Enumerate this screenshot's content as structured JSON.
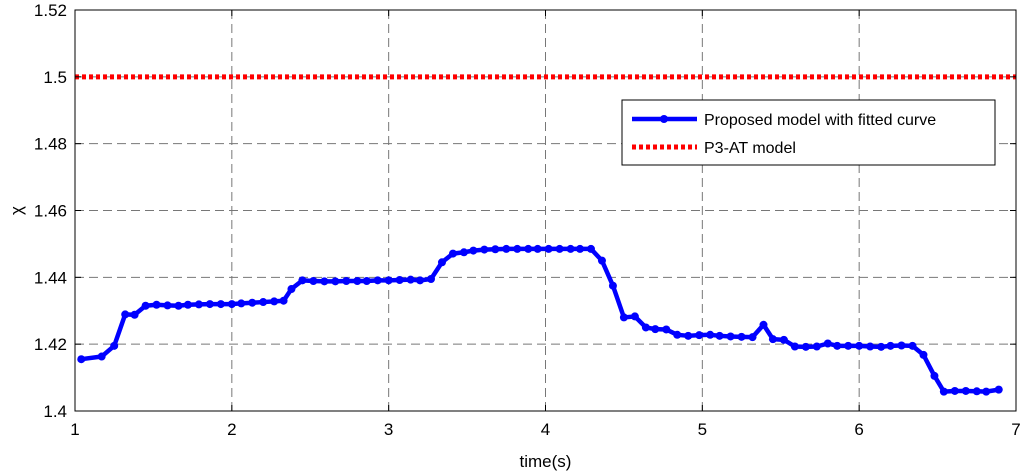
{
  "chart_data": {
    "type": "line",
    "xlabel": "time(s)",
    "ylabel": "χ",
    "xlim": [
      1,
      7
    ],
    "ylim": [
      1.4,
      1.52
    ],
    "xticks": [
      1,
      2,
      3,
      4,
      5,
      6,
      7
    ],
    "yticks": [
      1.4,
      1.42,
      1.44,
      1.46,
      1.48,
      1.5,
      1.52
    ],
    "xtick_labels": [
      "1",
      "2",
      "3",
      "4",
      "5",
      "6",
      "7"
    ],
    "ytick_labels": [
      "1.4",
      "1.42",
      "1.44",
      "1.46",
      "1.48",
      "1.5",
      "1.52"
    ],
    "grid": true,
    "legend_position": "top-right",
    "series": [
      {
        "name": "Proposed model with fitted curve",
        "color": "#0000ff",
        "style": "solid-with-markers",
        "x": [
          1.04,
          1.17,
          1.25,
          1.32,
          1.38,
          1.45,
          1.52,
          1.59,
          1.66,
          1.72,
          1.79,
          1.86,
          1.93,
          2.0,
          2.06,
          2.13,
          2.2,
          2.27,
          2.33,
          2.38,
          2.45,
          2.52,
          2.59,
          2.66,
          2.73,
          2.8,
          2.86,
          2.93,
          3.0,
          3.07,
          3.14,
          3.2,
          3.27,
          3.34,
          3.41,
          3.48,
          3.54,
          3.61,
          3.68,
          3.75,
          3.82,
          3.89,
          3.95,
          4.02,
          4.09,
          4.16,
          4.22,
          4.29,
          4.36,
          4.43,
          4.5,
          4.57,
          4.64,
          4.7,
          4.77,
          4.84,
          4.91,
          4.98,
          5.05,
          5.11,
          5.18,
          5.25,
          5.32,
          5.39,
          5.45,
          5.52,
          5.59,
          5.66,
          5.73,
          5.8,
          5.86,
          5.93,
          6.0,
          6.07,
          6.14,
          6.2,
          6.27,
          6.34,
          6.41,
          6.48,
          6.54,
          6.61,
          6.68,
          6.75,
          6.81,
          6.89
        ],
        "y": [
          1.4155,
          1.4163,
          1.4195,
          1.4289,
          1.4288,
          1.4315,
          1.4318,
          1.4316,
          1.4315,
          1.4318,
          1.4319,
          1.432,
          1.432,
          1.432,
          1.4322,
          1.4324,
          1.4326,
          1.4328,
          1.433,
          1.4365,
          1.4391,
          1.4389,
          1.4388,
          1.4388,
          1.4389,
          1.4389,
          1.4389,
          1.4391,
          1.4391,
          1.4392,
          1.4393,
          1.4391,
          1.4395,
          1.4445,
          1.4471,
          1.4475,
          1.448,
          1.4483,
          1.4484,
          1.4485,
          1.4485,
          1.4485,
          1.4485,
          1.4485,
          1.4485,
          1.4485,
          1.4485,
          1.4485,
          1.445,
          1.4375,
          1.428,
          1.4283,
          1.425,
          1.4245,
          1.4244,
          1.4228,
          1.4225,
          1.4227,
          1.4228,
          1.4225,
          1.4223,
          1.4222,
          1.4221,
          1.4258,
          1.4215,
          1.4213,
          1.4193,
          1.4192,
          1.4193,
          1.4202,
          1.4195,
          1.4195,
          1.4195,
          1.4193,
          1.4192,
          1.4195,
          1.4196,
          1.4195,
          1.4168,
          1.4105,
          1.4058,
          1.406,
          1.406,
          1.4059,
          1.4058,
          1.4064
        ]
      },
      {
        "name": "P3-AT model",
        "color": "#ff0000",
        "style": "dotted",
        "x": [
          1,
          7
        ],
        "y": [
          1.5,
          1.5
        ]
      }
    ]
  }
}
